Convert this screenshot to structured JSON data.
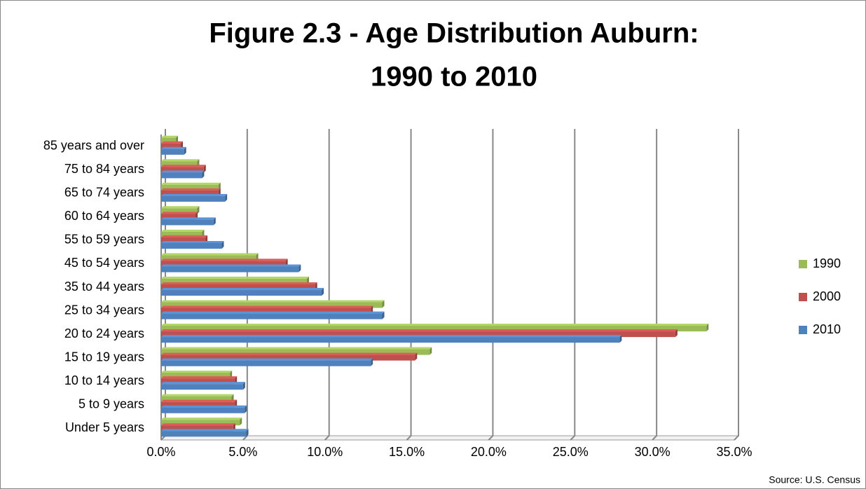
{
  "chart_data": {
    "type": "bar",
    "orientation": "horizontal",
    "title": [
      "Figure 2.3 - Age Distribution Auburn:",
      "1990 to 2010"
    ],
    "source": "Source: U.S. Census",
    "categories": [
      "85 years and over",
      "75 to 84 years",
      "65 to 74 years",
      "60 to 64 years",
      "55 to 59 years",
      "45 to 54 years",
      "35 to 44 years",
      "25 to 34 years",
      "20 to 24 years",
      "15 to 19 years",
      "10 to 14 years",
      "5 to 9 years",
      "Under 5 years"
    ],
    "series": [
      {
        "name": "1990",
        "color": "#9bbb59",
        "values": [
          0.9,
          2.2,
          3.5,
          2.2,
          2.5,
          5.8,
          8.9,
          13.5,
          33.3,
          16.4,
          4.2,
          4.3,
          4.8
        ]
      },
      {
        "name": "2000",
        "color": "#c0504d",
        "values": [
          1.2,
          2.6,
          3.5,
          2.1,
          2.7,
          7.6,
          9.4,
          12.8,
          31.4,
          15.5,
          4.5,
          4.5,
          4.4
        ]
      },
      {
        "name": "2010",
        "color": "#4f81bd",
        "values": [
          1.4,
          2.5,
          3.9,
          3.2,
          3.7,
          8.4,
          9.8,
          13.5,
          28.0,
          12.8,
          5.0,
          5.1,
          5.2
        ]
      }
    ],
    "xlim": [
      0,
      35
    ],
    "xticks": [
      {
        "value": 0,
        "label": "0.0%"
      },
      {
        "value": 5,
        "label": "5.0%"
      },
      {
        "value": 10,
        "label": "10.0%"
      },
      {
        "value": 15,
        "label": "15.0%"
      },
      {
        "value": 20,
        "label": "20.0%"
      },
      {
        "value": 25,
        "label": "25.0%"
      },
      {
        "value": 30,
        "label": "30.0%"
      },
      {
        "value": 35,
        "label": "35.0%"
      }
    ],
    "grid": true,
    "legend": "right"
  }
}
